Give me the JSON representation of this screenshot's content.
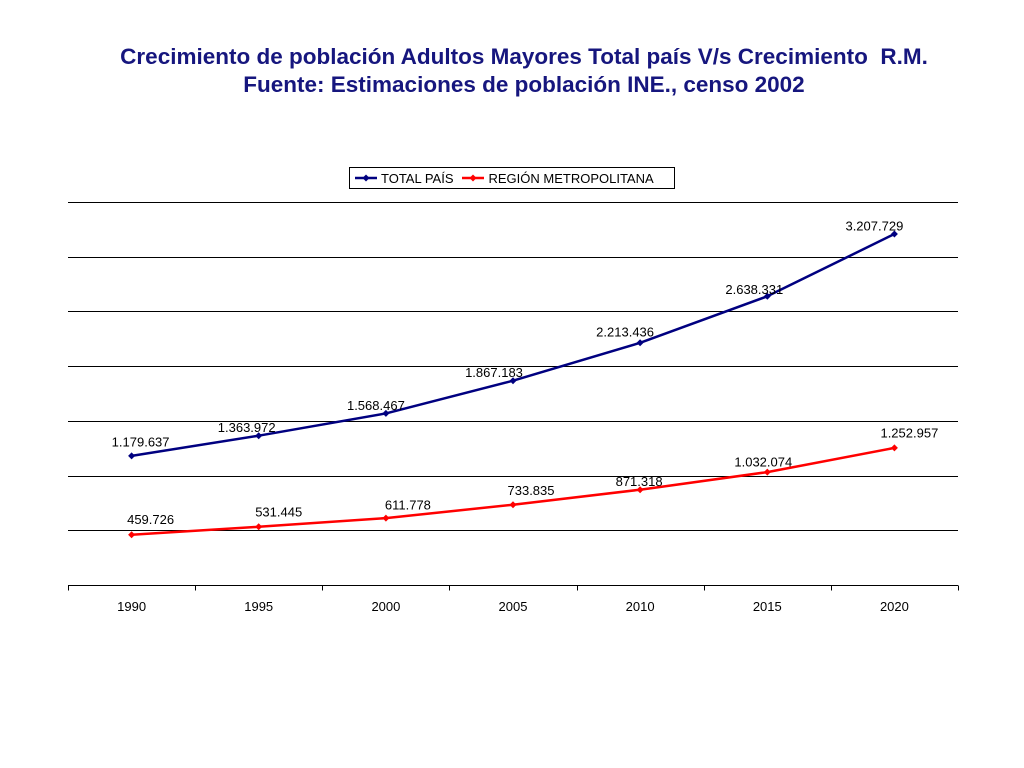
{
  "chart_data": {
    "type": "line",
    "title": "Crecimiento de población Adultos Mayores Total país V/s Crecimiento  R.M.",
    "subtitle": "Fuente: Estimaciones de población INE., censo 2002",
    "title_color": "#16167E",
    "xlabel": "",
    "ylabel": "",
    "categories": [
      "1990",
      "1995",
      "2000",
      "2005",
      "2010",
      "2015",
      "2020"
    ],
    "series": [
      {
        "name": "TOTAL PAÍS",
        "color": "#000080",
        "marker": "diamond",
        "values": [
          1179637,
          1363972,
          1568467,
          1867183,
          2213436,
          2638331,
          3207729
        ],
        "labels": [
          "1.179.637",
          "1.363.972",
          "1.568.467",
          "1.867.183",
          "2.213.436",
          "2.638.331",
          "3.207.729"
        ]
      },
      {
        "name": "REGIÓN METROPOLITANA",
        "color": "#FF0000",
        "marker": "diamond",
        "values": [
          459726,
          531445,
          611778,
          733835,
          871318,
          1032074,
          1252957
        ],
        "labels": [
          "459.726",
          "531.445",
          "611.778",
          "733.835",
          "871.318",
          "1.032.074",
          "1.252.957"
        ]
      }
    ],
    "ylim": [
      0,
      3500000
    ],
    "y_grid_step": 500000,
    "y_tick_labels": false,
    "grid": true,
    "legend": "top-center",
    "data_labels": true
  }
}
